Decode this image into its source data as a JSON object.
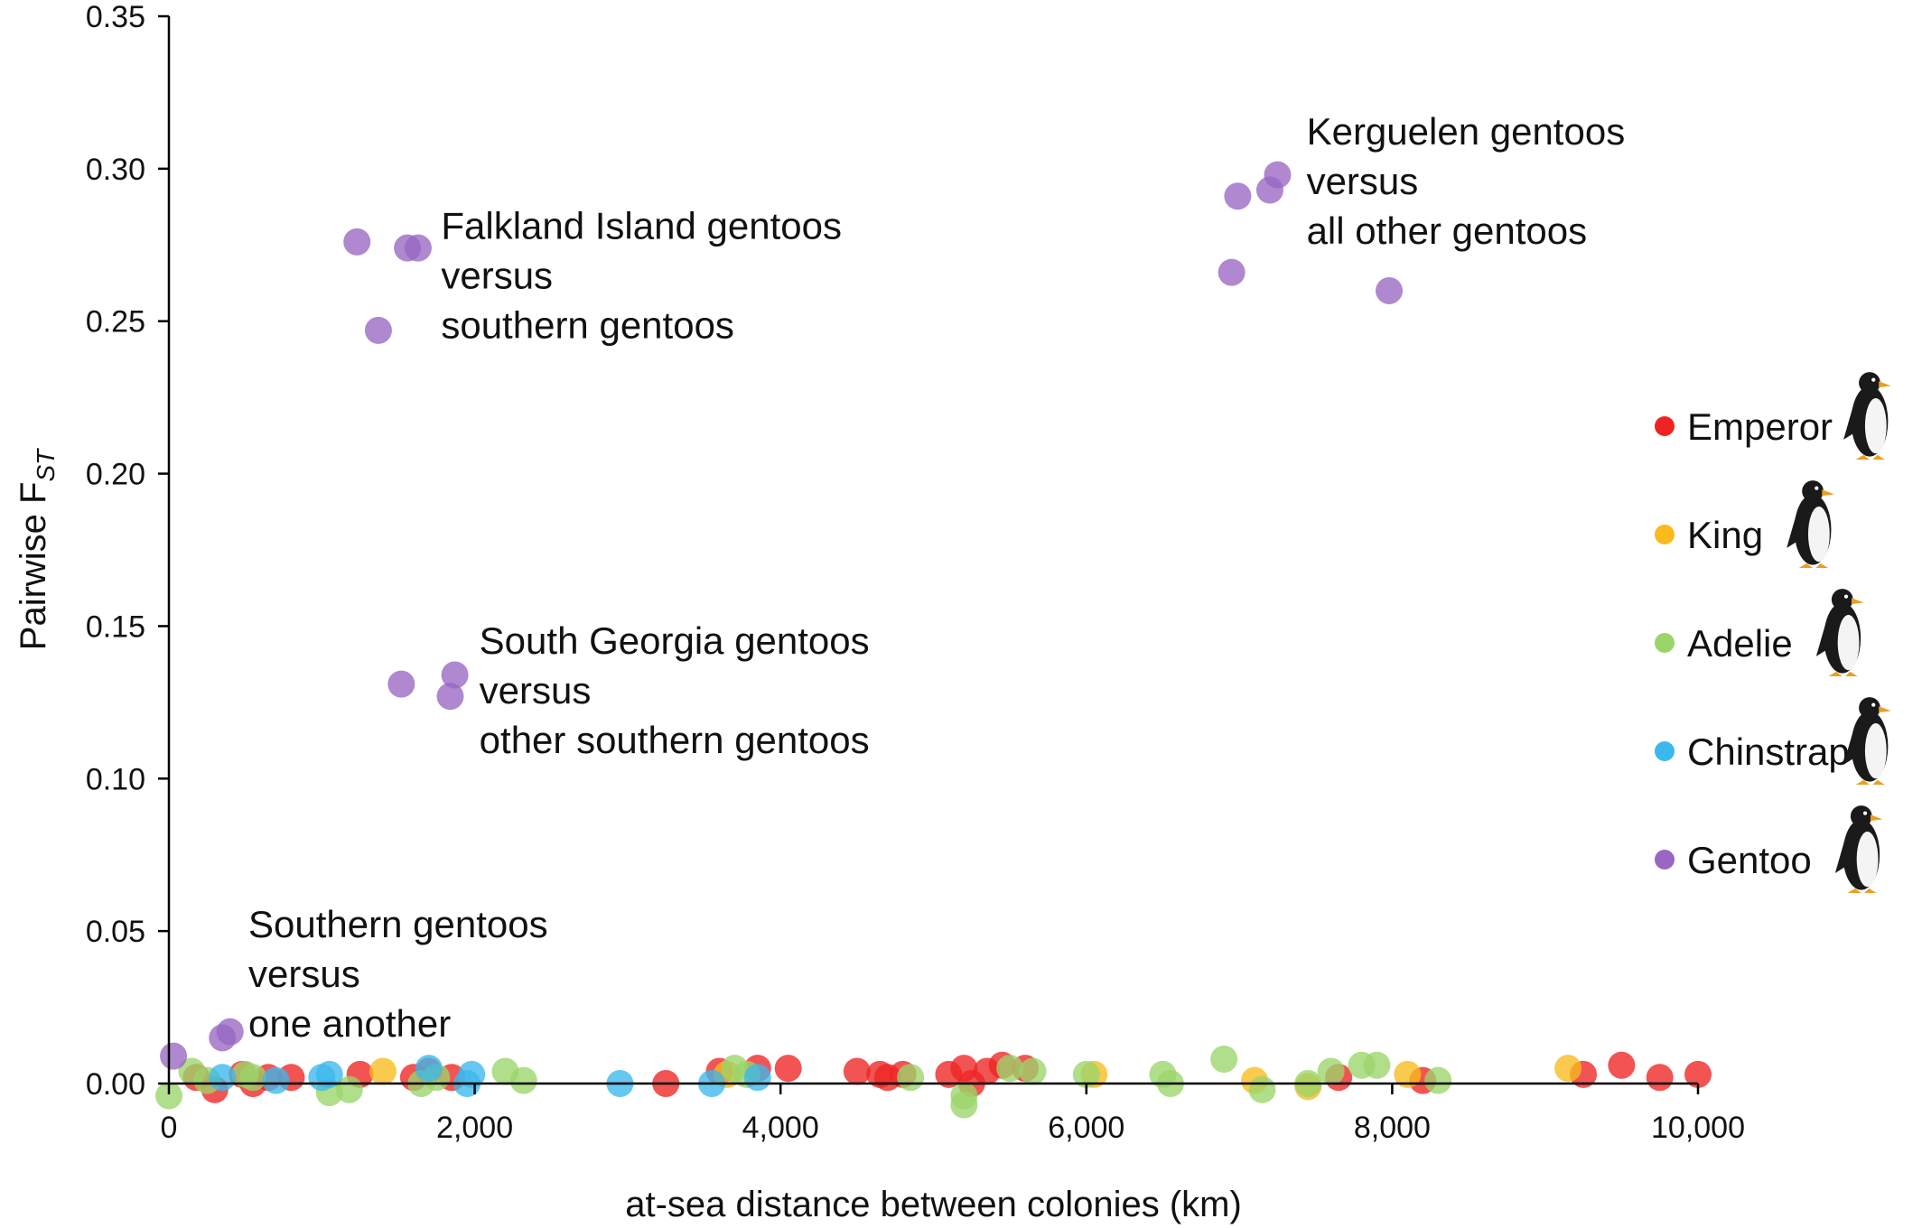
{
  "chart_data": {
    "type": "scatter",
    "title": "",
    "xlabel": "at-sea distance between colonies (km)",
    "ylabel": {
      "main": "Pairwise F",
      "sub": "ST"
    },
    "xlim": [
      0,
      10000
    ],
    "ylim": [
      0,
      0.35
    ],
    "x_ticks": [
      {
        "value": 0,
        "label": "0"
      },
      {
        "value": 2000,
        "label": "2,000"
      },
      {
        "value": 4000,
        "label": "4,000"
      },
      {
        "value": 6000,
        "label": "6,000"
      },
      {
        "value": 8000,
        "label": "8,000"
      },
      {
        "value": 10000,
        "label": "10,000"
      }
    ],
    "y_ticks": [
      {
        "value": 0,
        "label": "0.00"
      },
      {
        "value": 0.05,
        "label": "0.05"
      },
      {
        "value": 0.1,
        "label": "0.10"
      },
      {
        "value": 0.15,
        "label": "0.15"
      },
      {
        "value": 0.2,
        "label": "0.20"
      },
      {
        "value": 0.25,
        "label": "0.25"
      },
      {
        "value": 0.3,
        "label": "0.30"
      },
      {
        "value": 0.35,
        "label": "0.35"
      }
    ],
    "grid": false,
    "legend_position": "right",
    "series": [
      {
        "name": "Emperor",
        "color": "#ee2424",
        "icon": "emperor-penguin-icon",
        "points": [
          [
            180,
            0.002
          ],
          [
            300,
            -0.002
          ],
          [
            480,
            0.003
          ],
          [
            550,
            0.0
          ],
          [
            650,
            0.002
          ],
          [
            800,
            0.002
          ],
          [
            1250,
            0.003
          ],
          [
            1600,
            0.002
          ],
          [
            1700,
            0.004
          ],
          [
            1850,
            0.002
          ],
          [
            3250,
            0.0
          ],
          [
            3600,
            0.004
          ],
          [
            3850,
            0.005
          ],
          [
            4050,
            0.005
          ],
          [
            4500,
            0.004
          ],
          [
            4650,
            0.003
          ],
          [
            4700,
            0.002
          ],
          [
            4800,
            0.003
          ],
          [
            5100,
            0.003
          ],
          [
            5200,
            0.005
          ],
          [
            5250,
            0.0
          ],
          [
            5350,
            0.004
          ],
          [
            5450,
            0.006
          ],
          [
            5600,
            0.005
          ],
          [
            7650,
            0.002
          ],
          [
            8200,
            0.001
          ],
          [
            9250,
            0.003
          ],
          [
            9500,
            0.006
          ],
          [
            9750,
            0.002
          ],
          [
            10000,
            0.003
          ]
        ]
      },
      {
        "name": "King",
        "color": "#f9bb1c",
        "icon": "king-penguin-icon",
        "points": [
          [
            1400,
            0.004
          ],
          [
            3650,
            0.003
          ],
          [
            6050,
            0.003
          ],
          [
            7100,
            0.001
          ],
          [
            7450,
            -0.001
          ],
          [
            8100,
            0.003
          ],
          [
            9150,
            0.005
          ]
        ]
      },
      {
        "name": "Adelie",
        "color": "#9bd56a",
        "icon": "adelie-penguin-icon",
        "points": [
          [
            0,
            -0.004
          ],
          [
            150,
            0.004
          ],
          [
            250,
            0.001
          ],
          [
            500,
            0.003
          ],
          [
            550,
            0.002
          ],
          [
            1050,
            -0.003
          ],
          [
            1180,
            -0.002
          ],
          [
            1650,
            0.0
          ],
          [
            1750,
            0.002
          ],
          [
            2200,
            0.004
          ],
          [
            2320,
            0.001
          ],
          [
            3700,
            0.005
          ],
          [
            3780,
            0.003
          ],
          [
            4850,
            0.002
          ],
          [
            5200,
            -0.004
          ],
          [
            5200,
            -0.007
          ],
          [
            5500,
            0.005
          ],
          [
            5650,
            0.004
          ],
          [
            6000,
            0.003
          ],
          [
            6500,
            0.003
          ],
          [
            6550,
            0.0
          ],
          [
            6900,
            0.008
          ],
          [
            7150,
            -0.002
          ],
          [
            7450,
            0.0
          ],
          [
            7600,
            0.004
          ],
          [
            7800,
            0.006
          ],
          [
            7900,
            0.006
          ],
          [
            8300,
            0.001
          ]
        ]
      },
      {
        "name": "Chinstrap",
        "color": "#3bb8ec",
        "icon": "chinstrap-penguin-icon",
        "points": [
          [
            350,
            0.002
          ],
          [
            700,
            0.001
          ],
          [
            1000,
            0.002
          ],
          [
            1050,
            0.003
          ],
          [
            1700,
            0.005
          ],
          [
            1950,
            0.0
          ],
          [
            1980,
            0.003
          ],
          [
            2950,
            0.0
          ],
          [
            3550,
            0.0
          ],
          [
            3850,
            0.002
          ]
        ]
      },
      {
        "name": "Gentoo",
        "color": "#9966c2",
        "icon": "gentoo-penguin-icon",
        "points": [
          [
            30,
            0.009
          ],
          [
            350,
            0.015
          ],
          [
            400,
            0.017
          ],
          [
            1230,
            0.276
          ],
          [
            1370,
            0.247
          ],
          [
            1560,
            0.274
          ],
          [
            1630,
            0.274
          ],
          [
            1520,
            0.131
          ],
          [
            1840,
            0.127
          ],
          [
            1870,
            0.134
          ],
          [
            6950,
            0.266
          ],
          [
            6990,
            0.291
          ],
          [
            7200,
            0.293
          ],
          [
            7250,
            0.298
          ],
          [
            7980,
            0.26
          ]
        ]
      }
    ],
    "annotations": [
      {
        "name": "annotation-falkland",
        "x": 1780,
        "y": 0.277,
        "lines": [
          "Falkland Island gentoos",
          "versus",
          "southern gentoos"
        ]
      },
      {
        "name": "annotation-kerguelen",
        "x": 7440,
        "y": 0.308,
        "lines": [
          "Kerguelen gentoos",
          "versus",
          "all other gentoos"
        ]
      },
      {
        "name": "annotation-south-georgia",
        "x": 2030,
        "y": 0.141,
        "lines": [
          "South Georgia gentoos",
          "versus",
          "other southern gentoos"
        ]
      },
      {
        "name": "annotation-southern",
        "x": 520,
        "y": 0.048,
        "lines": [
          "Southern gentoos",
          "versus",
          "one another"
        ]
      }
    ]
  }
}
